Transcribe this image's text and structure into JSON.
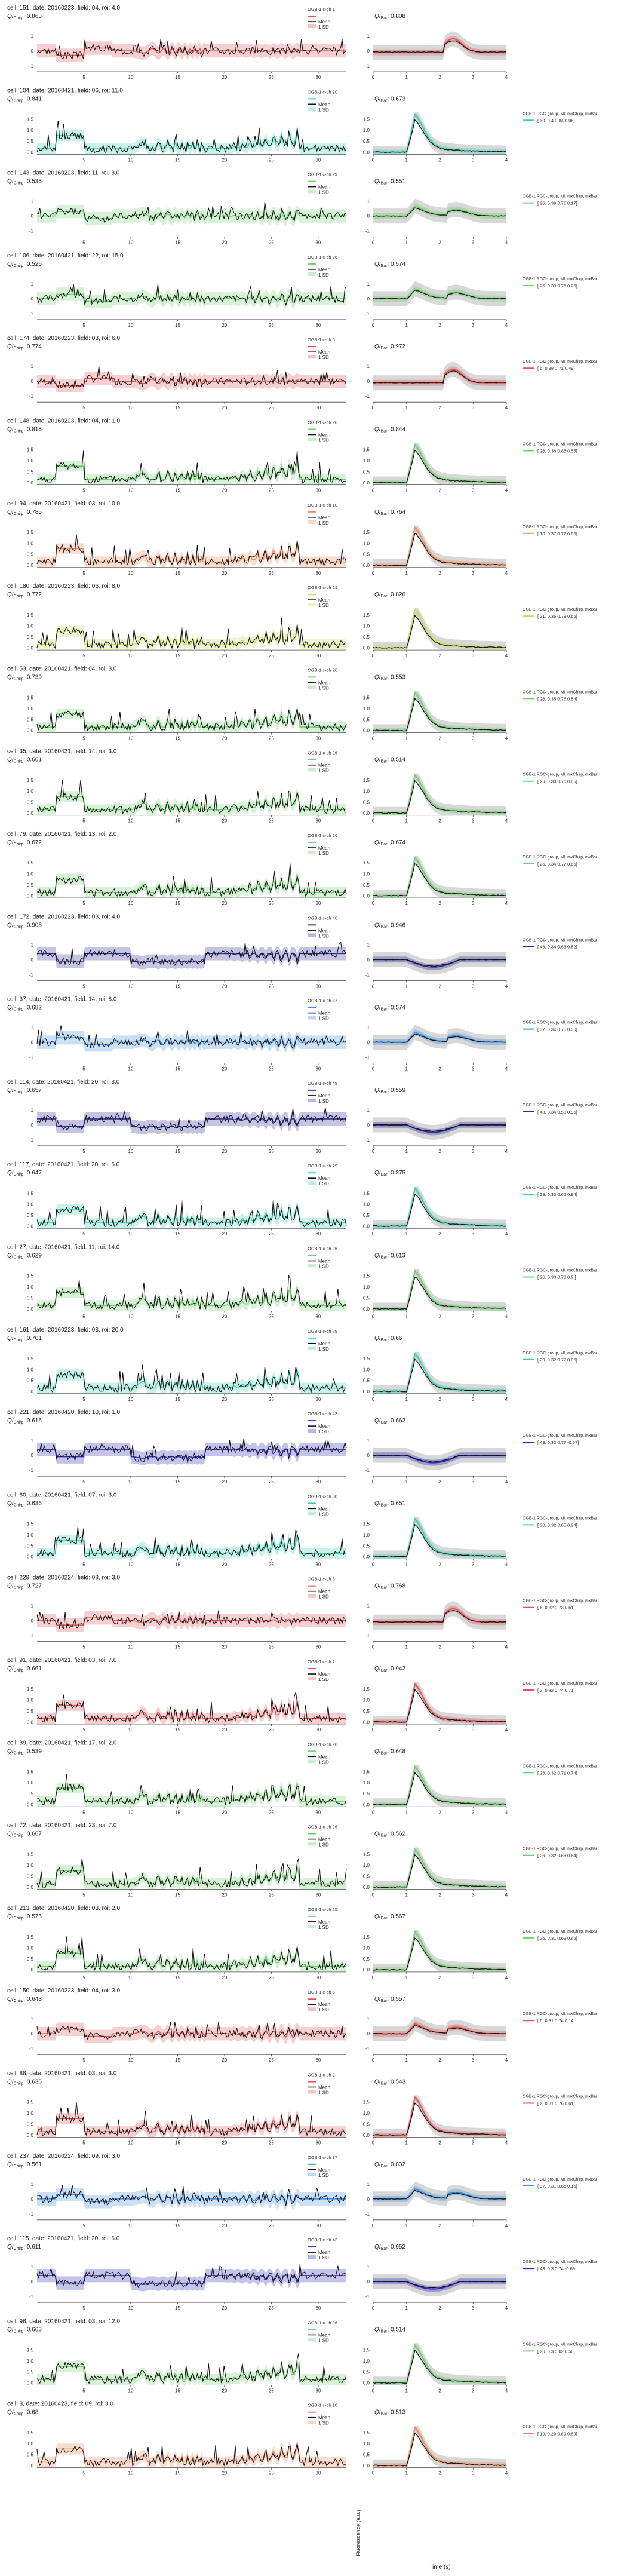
{
  "chart_data": {
    "type": "line",
    "time_xlabel": "Time (s)",
    "chirp_xticks": [
      5,
      10,
      15,
      20,
      25,
      30
    ],
    "chirp_xlim": [
      0,
      33
    ],
    "step_xticks": [
      0,
      1,
      2,
      3,
      4
    ],
    "step_xlim": [
      0,
      4
    ],
    "ylabel_shared": "Fluorescence (a.u.)",
    "legend_mean": "Mean",
    "legend_sd": "1 SD",
    "rgc_header": "OGB-1 RGC-group, MI, mxChirp, mxBar",
    "color_key": {
      "red": "#e05555",
      "teal": "#3ecfb0",
      "green": "#6fcf6f",
      "olive": "#c8dc5a",
      "navy": "#2d2d9a",
      "blue": "#3d8fe0",
      "darkblue": "#2a2ab8",
      "orange": "#ef8a5a"
    },
    "panels": [
      {
        "cell": "cell: 151, date: 20160223, field: 04, roi: 4.0",
        "qi_chirp": "0.863",
        "group_label": "OGB-1 c-ch 1",
        "qi_bar": "0.808",
        "color": "red",
        "rgc": "",
        "yticks": [
          "1",
          "0",
          "-1"
        ],
        "shape": "off"
      },
      {
        "cell": "cell: 104, date: 20160421, field: 06, roi: 11.0",
        "qi_chirp": "0.841",
        "group_label": "OGB-1 c-ch 20",
        "qi_bar": "0.673",
        "color": "teal",
        "rgc": "[ 30.    0.4    0.84   0.98]",
        "yticks": [
          "1.5",
          "1.0",
          "0.5",
          "0.0"
        ],
        "shape": "on"
      },
      {
        "cell": "cell: 143, date: 20160223, field: 11, roi: 3.0",
        "qi_chirp": "0.535",
        "group_label": "OGB-1 c-ch 29",
        "qi_bar": "0.551",
        "color": "green",
        "rgc": "[ 26.    0.39   0.76   0.17]",
        "yticks": [
          "1",
          "0",
          "-1"
        ],
        "shape": "mixed"
      },
      {
        "cell": "cell: 106, date: 20160421, field: 22, roi: 15.0",
        "qi_chirp": "0.526",
        "group_label": "OGB-1 c-ch 26",
        "qi_bar": "0.574",
        "color": "green",
        "rgc": "[ 26.    0.39   0.76   0.25]",
        "yticks": [
          "1",
          "0",
          "-1"
        ],
        "shape": "mixed"
      },
      {
        "cell": "cell: 174, date: 20160223, field: 03, roi: 6.0",
        "qi_chirp": "0.774",
        "group_label": "OGB-1 c-ch 6",
        "qi_bar": "0.972",
        "color": "red",
        "rgc": "[ 6.     0.38   0.71   0.49]",
        "yticks": [
          "1",
          "0",
          "-1"
        ],
        "shape": "off"
      },
      {
        "cell": "cell: 148, date: 20160223, field: 04, roi: 1.0",
        "qi_chirp": "0.815",
        "group_label": "OGB-1 c-ch 26",
        "qi_bar": "0.844",
        "color": "green",
        "rgc": "[ 26.    0.36   0.85   0.55]",
        "yticks": [
          "1.5",
          "1.0",
          "0.5",
          "0.0"
        ],
        "shape": "on"
      },
      {
        "cell": "cell: 94, date: 20160421, field: 03, roi: 10.0",
        "qi_chirp": "0.785",
        "group_label": "OGB-1 c-ch 10",
        "qi_bar": "0.764",
        "color": "orange",
        "rgc": "[ 10.    0.37   0.77   0.66]",
        "yticks": [
          "1.5",
          "1.0",
          "0.5",
          "0.0"
        ],
        "shape": "on"
      },
      {
        "cell": "cell: 180, date: 20160223, field: 06, roi: 8.0",
        "qi_chirp": "0.772",
        "group_label": "OGB-1 c-ch 21",
        "qi_bar": "0.826",
        "color": "olive",
        "rgc": "[ 21.    0.36   0.78   0.65]",
        "yticks": [
          "1.5",
          "1.0",
          "0.5",
          "0.0"
        ],
        "shape": "on"
      },
      {
        "cell": "cell: 53, date: 20160421, field: 04, roi: 8.0",
        "qi_chirp": "0.739",
        "group_label": "OGB-1 c-ch 26",
        "qi_bar": "0.553",
        "color": "green",
        "rgc": "[ 26.    0.35   0.76   0.54]",
        "yticks": [
          "1.5",
          "1.0",
          "0.5",
          "0.0"
        ],
        "shape": "on"
      },
      {
        "cell": "cell: 35, date: 20160421, field: 14, roi: 3.0",
        "qi_chirp": "0.661",
        "group_label": "OGB-1 c-ch 26",
        "qi_bar": "0.514",
        "color": "green",
        "rgc": "[ 26.    0.33   0.76   0.65]",
        "yticks": [
          "1.5",
          "1.0",
          "0.5",
          "0.0"
        ],
        "shape": "on"
      },
      {
        "cell": "cell: 79, date: 20160421, field: 13, roi: 2.0",
        "qi_chirp": "0.672",
        "group_label": "OGB-1 c-ch 26",
        "qi_bar": "0.674",
        "color": "green",
        "rgc": "[ 26.    0.34   0.77   0.65]",
        "yticks": [
          "1.5",
          "1.0",
          "0.5",
          "0.0"
        ],
        "shape": "on"
      },
      {
        "cell": "cell: 172, date: 20160223, field: 03, roi: 4.0",
        "qi_chirp": "0.908",
        "group_label": "OGB-1 c-ch 46",
        "qi_bar": "0.946",
        "color": "navy",
        "rgc": "[ 46.    0.34   0.66   0.52]",
        "yticks": [
          "1",
          "0",
          "-1"
        ],
        "shape": "supp"
      },
      {
        "cell": "cell: 37, date: 20160421, field: 14, roi: 8.0",
        "qi_chirp": "0.682",
        "group_label": "OGB-1 c-ch 37",
        "qi_bar": "0.574",
        "color": "blue",
        "rgc": "[ 37.    0.34   0.75   0.56]",
        "yticks": [
          "1",
          "0",
          "-1"
        ],
        "shape": "mixed"
      },
      {
        "cell": "cell: 114, date: 20160421, field: 20, roi: 3.0",
        "qi_chirp": "0.657",
        "group_label": "OGB-1 c-ch 48",
        "qi_bar": "0.559",
        "color": "navy",
        "rgc": "[ 48.    0.34   0.58   0.95]",
        "yticks": [
          "1",
          "0",
          "-1"
        ],
        "shape": "supp"
      },
      {
        "cell": "cell: 117, date: 20160421, field: 20, roi: 6.0",
        "qi_chirp": "0.647",
        "group_label": "OGB-1 c-ch 29",
        "qi_bar": "0.875",
        "color": "teal",
        "rgc": "[ 29.    0.33   0.65   0.94]",
        "yticks": [
          "1.5",
          "1.0",
          "0.5",
          "0.0"
        ],
        "shape": "on"
      },
      {
        "cell": "cell: 27, date: 20160421, field: 11, roi: 14.0",
        "qi_chirp": "0.629",
        "group_label": "OGB-1 c-ch 26",
        "qi_bar": "0.613",
        "color": "green",
        "rgc": "[ 26.    0.33   0.73   0.9 ]",
        "yticks": [
          "1.5",
          "1.0",
          "0.5",
          "0.0"
        ],
        "shape": "on"
      },
      {
        "cell": "cell: 161, date: 20160223, field: 03, roi: 20.0",
        "qi_chirp": "0.701",
        "group_label": "OGB-1 c-ch 29",
        "qi_bar": "0.66",
        "color": "teal",
        "rgc": "[ 29.    0.32   0.72   0.86]",
        "yticks": [
          "1.5",
          "1.0",
          "0.5",
          "0.0"
        ],
        "shape": "on"
      },
      {
        "cell": "cell: 221, date: 20160420, field: 10, roi: 1.0",
        "qi_chirp": "0.615",
        "group_label": "OGB-1 c-ch 43",
        "qi_bar": "0.662",
        "color": "darkblue",
        "rgc": "[ 43.    0.32   0.77  -0.57]",
        "yticks": [
          "1",
          "0",
          "-1"
        ],
        "shape": "supp"
      },
      {
        "cell": "cell: 60, date: 20160421, field: 07, roi: 3.0",
        "qi_chirp": "0.636",
        "group_label": "OGB-1 c-ch 30",
        "qi_bar": "0.651",
        "color": "teal",
        "rgc": "[ 30.    0.32   0.65   0.94]",
        "yticks": [
          "1.5",
          "1.0",
          "0.5",
          "0.0"
        ],
        "shape": "on"
      },
      {
        "cell": "cell: 229, date: 20160224, field: 08, roi: 3.0",
        "qi_chirp": "0.727",
        "group_label": "OGB-1 c-ch 6",
        "qi_bar": "0.768",
        "color": "red",
        "rgc": "[ 6.     0.32   0.73   0.51]",
        "yticks": [
          "1",
          "0",
          "-1"
        ],
        "shape": "off"
      },
      {
        "cell": "cell: 91, date: 20160421, field: 03, roi: 7.0",
        "qi_chirp": "0.661",
        "group_label": "OGB-1 c-ch 2",
        "qi_bar": "0.942",
        "color": "red",
        "rgc": "[ 2.     0.32   0.74   0.71]",
        "yticks": [
          "1.5",
          "1.0",
          "0.5",
          "0.0"
        ],
        "shape": "on"
      },
      {
        "cell": "cell: 39, date: 20160421, field: 17, roi: 2.0",
        "qi_chirp": "0.539",
        "group_label": "OGB-1 c-ch 26",
        "qi_bar": "0.648",
        "color": "green",
        "rgc": "[ 26.    0.32   0.71   0.74]",
        "yticks": [
          "1.5",
          "1.0",
          "0.5",
          "0.0"
        ],
        "shape": "on"
      },
      {
        "cell": "cell: 72, date: 20160421, field: 23, roi: 7.0",
        "qi_chirp": "0.667",
        "group_label": "OGB-1 c-ch 26",
        "qi_bar": "0.562",
        "color": "green",
        "rgc": "[ 26.    0.32   0.66   0.84]",
        "yticks": [
          "1.5",
          "1.0",
          "0.5",
          "0.0"
        ],
        "shape": "on"
      },
      {
        "cell": "cell: 213, date: 20160420, field: 03, roi: 2.0",
        "qi_chirp": "0.576",
        "group_label": "OGB-1 c-ch 25",
        "qi_bar": "0.567",
        "color": "green",
        "rgc": "[ 25.    0.31   0.69   0.65]",
        "yticks": [
          "1.5",
          "1.0",
          "0.5",
          "0.0"
        ],
        "shape": "on"
      },
      {
        "cell": "cell: 150, date: 20160223, field: 04, roi: 3.0",
        "qi_chirp": "0.643",
        "group_label": "OGB-1 c-ch 6",
        "qi_bar": "0.557",
        "color": "red",
        "rgc": "[ 6.     0.31   0.74   0.14]",
        "yticks": [
          "1",
          "0",
          "-1"
        ],
        "shape": "mixed"
      },
      {
        "cell": "cell: 88, date: 20160421, field: 03, roi: 3.0",
        "qi_chirp": "0.636",
        "group_label": "OGB-1 c-ch 2",
        "qi_bar": "0.543",
        "color": "red",
        "rgc": "[ 2.     0.31   0.76   0.61]",
        "yticks": [
          "1.5",
          "1.0",
          "0.5",
          "0.0"
        ],
        "shape": "on"
      },
      {
        "cell": "cell: 237, date: 20160224, field: 09, roi: 3.0",
        "qi_chirp": "0.561",
        "group_label": "OGB-1 c-ch 37",
        "qi_bar": "0.832",
        "color": "blue",
        "rgc": "[ 37.    0.31   0.65   0.15]",
        "yticks": [
          "1",
          "0",
          "-1"
        ],
        "shape": "mixed"
      },
      {
        "cell": "cell: 115, date: 20160421, field: 20, roi: 6.0",
        "qi_chirp": "0.611",
        "group_label": "OGB-1 c-ch 43",
        "qi_bar": "0.952",
        "color": "darkblue",
        "rgc": "[ 43.    0.3    0.74  -0.69]",
        "yticks": [
          "1",
          "0",
          "-1"
        ],
        "shape": "supp"
      },
      {
        "cell": "cell: 96, date: 20160421, field: 03, roi: 12.0",
        "qi_chirp": "0.663",
        "group_label": "OGB-1 c-ch 26",
        "qi_bar": "0.514",
        "color": "green",
        "rgc": "[ 26.    0.3    0.62   0.56]",
        "yticks": [
          "1.5",
          "1.0",
          "0.5",
          "0.0"
        ],
        "shape": "on"
      },
      {
        "cell": "cell: 8, date: 20160423, field: 09, roi: 3.0",
        "qi_chirp": "0.68",
        "group_label": "OGB-1 c-ch 10",
        "qi_bar": "0.513",
        "color": "orange",
        "rgc": "[ 10.    0.29   0.69   0.89]",
        "yticks": [
          "1.5",
          "1.0",
          "0.5",
          "0.0"
        ],
        "shape": "on"
      }
    ]
  }
}
